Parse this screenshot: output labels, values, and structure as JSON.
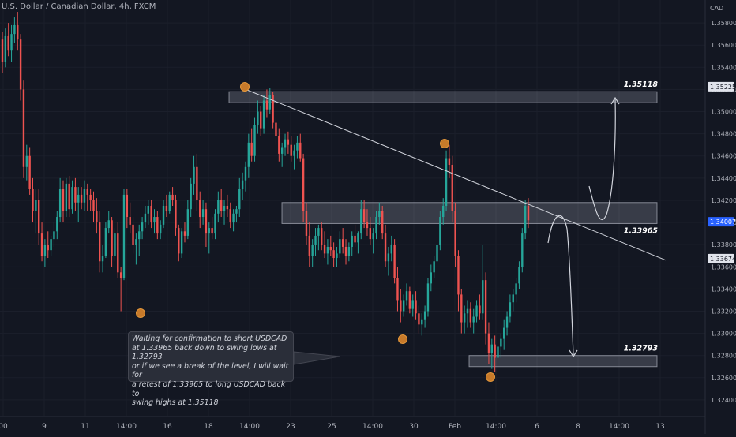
{
  "header": {
    "title": "U.S. Dollar / Canadian Dollar, 4h, FXCM"
  },
  "note": {
    "lines": [
      "Waiting for confirmation to short USDCAD",
      "at 1.33965 back down to swing lows at 1.32793",
      "or if we see a break of the level, I will wait for",
      "a retest of 1.33965 to long USDCAD back to",
      "swing highs at 1.35118"
    ]
  },
  "chart_data": {
    "type": "candlestick",
    "symbol": "USDCAD",
    "timeframe": "4h",
    "y_axis": {
      "unit_label": "CAD",
      "ticks": [
        "1.35800",
        "1.35600",
        "1.35400",
        "1.35200",
        "1.35000",
        "1.34800",
        "1.34600",
        "1.34400",
        "1.34200",
        "1.34000",
        "1.33800",
        "1.33600",
        "1.33400",
        "1.33200",
        "1.33000",
        "1.32800",
        "1.32600",
        "1.32400"
      ],
      "ylim": [
        1.3225,
        1.3595
      ],
      "badges": [
        {
          "value": "1.35225",
          "style": "light"
        },
        {
          "value": "1.34007",
          "style": "current"
        },
        {
          "value": "1.33674",
          "style": "light"
        }
      ]
    },
    "x_axis": {
      "ticks": [
        "00",
        "9",
        "11",
        "14:00",
        "16",
        "18",
        "14:00",
        "23",
        "25",
        "14:00",
        "30",
        "Feb",
        "14:00",
        "6",
        "8",
        "14:00",
        "13"
      ]
    },
    "levels": [
      {
        "label": "1.35118",
        "value": 1.35118,
        "zone": [
          1.3508,
          1.3518
        ]
      },
      {
        "label": "1.33965",
        "value": 1.33965,
        "zone": [
          1.3399,
          1.3418
        ]
      },
      {
        "label": "1.32793",
        "value": 1.32793,
        "zone": [
          1.327,
          1.328
        ]
      }
    ],
    "trendline": {
      "from": 1.3521,
      "to": 1.3366
    },
    "candles": [
      [
        1.3565,
        1.3572,
        1.3535,
        1.3545
      ],
      [
        1.3545,
        1.3575,
        1.354,
        1.3568
      ],
      [
        1.3568,
        1.358,
        1.355,
        1.3555
      ],
      [
        1.3555,
        1.3578,
        1.3545,
        1.357
      ],
      [
        1.357,
        1.3585,
        1.3562,
        1.3578
      ],
      [
        1.3578,
        1.359,
        1.3555,
        1.3565
      ],
      [
        1.3565,
        1.357,
        1.351,
        1.352
      ],
      [
        1.352,
        1.3528,
        1.344,
        1.345
      ],
      [
        1.345,
        1.347,
        1.3438,
        1.346
      ],
      [
        1.346,
        1.3468,
        1.3425,
        1.343
      ],
      [
        1.343,
        1.344,
        1.34,
        1.341
      ],
      [
        1.341,
        1.343,
        1.339,
        1.342
      ],
      [
        1.342,
        1.343,
        1.338,
        1.339
      ],
      [
        1.339,
        1.34,
        1.3365,
        1.337
      ],
      [
        1.337,
        1.3385,
        1.336,
        1.338
      ],
      [
        1.338,
        1.3392,
        1.3368,
        1.3375
      ],
      [
        1.3375,
        1.3388,
        1.337,
        1.3385
      ],
      [
        1.3385,
        1.34,
        1.3378,
        1.3392
      ],
      [
        1.3392,
        1.341,
        1.3385,
        1.3405
      ],
      [
        1.3405,
        1.344,
        1.34,
        1.343
      ],
      [
        1.343,
        1.3438,
        1.34,
        1.341
      ],
      [
        1.341,
        1.344,
        1.3405,
        1.3435
      ],
      [
        1.3435,
        1.3442,
        1.3405,
        1.3412
      ],
      [
        1.3412,
        1.3438,
        1.3408,
        1.3432
      ],
      [
        1.3432,
        1.344,
        1.341,
        1.3418
      ],
      [
        1.3418,
        1.3432,
        1.34,
        1.3425
      ],
      [
        1.3425,
        1.3432,
        1.3412,
        1.3418
      ],
      [
        1.3418,
        1.3438,
        1.341,
        1.343
      ],
      [
        1.343,
        1.3435,
        1.341,
        1.3425
      ],
      [
        1.3425,
        1.343,
        1.341,
        1.342
      ],
      [
        1.342,
        1.3428,
        1.34,
        1.341
      ],
      [
        1.341,
        1.3422,
        1.339,
        1.34
      ],
      [
        1.34,
        1.341,
        1.3355,
        1.3365
      ],
      [
        1.3365,
        1.338,
        1.3355,
        1.337
      ],
      [
        1.337,
        1.34,
        1.3368,
        1.3395
      ],
      [
        1.3395,
        1.341,
        1.339,
        1.3402
      ],
      [
        1.3402,
        1.3405,
        1.336,
        1.337
      ],
      [
        1.337,
        1.3395,
        1.3365,
        1.339
      ],
      [
        1.339,
        1.34,
        1.335,
        1.3355
      ],
      [
        1.3355,
        1.336,
        1.332,
        1.335
      ],
      [
        1.335,
        1.343,
        1.3348,
        1.3425
      ],
      [
        1.3425,
        1.343,
        1.3395,
        1.3405
      ],
      [
        1.3405,
        1.3418,
        1.339,
        1.3398
      ],
      [
        1.3398,
        1.3405,
        1.3372,
        1.338
      ],
      [
        1.338,
        1.339,
        1.3362,
        1.3385
      ],
      [
        1.3385,
        1.3398,
        1.337,
        1.3392
      ],
      [
        1.3392,
        1.3405,
        1.3385,
        1.34
      ],
      [
        1.34,
        1.3415,
        1.3395,
        1.3408
      ],
      [
        1.3408,
        1.342,
        1.3398,
        1.3415
      ],
      [
        1.3415,
        1.342,
        1.3395,
        1.34
      ],
      [
        1.34,
        1.3412,
        1.339,
        1.3405
      ],
      [
        1.3405,
        1.341,
        1.3385,
        1.339
      ],
      [
        1.339,
        1.3402,
        1.3385,
        1.3398
      ],
      [
        1.3398,
        1.342,
        1.3395,
        1.3415
      ],
      [
        1.3415,
        1.3425,
        1.3405,
        1.341
      ],
      [
        1.341,
        1.3428,
        1.3408,
        1.3425
      ],
      [
        1.3425,
        1.3432,
        1.3415,
        1.342
      ],
      [
        1.342,
        1.3425,
        1.3388,
        1.3395
      ],
      [
        1.3395,
        1.3398,
        1.3365,
        1.3372
      ],
      [
        1.3372,
        1.3395,
        1.3368,
        1.3392
      ],
      [
        1.3392,
        1.34,
        1.3382,
        1.3388
      ],
      [
        1.3388,
        1.342,
        1.3385,
        1.3412
      ],
      [
        1.3412,
        1.344,
        1.3405,
        1.3435
      ],
      [
        1.3435,
        1.346,
        1.3425,
        1.345
      ],
      [
        1.345,
        1.3462,
        1.341,
        1.342
      ],
      [
        1.342,
        1.3428,
        1.3395,
        1.3405
      ],
      [
        1.3405,
        1.342,
        1.3398,
        1.3412
      ],
      [
        1.3412,
        1.3418,
        1.3378,
        1.339
      ],
      [
        1.339,
        1.34,
        1.3372,
        1.3395
      ],
      [
        1.3395,
        1.3405,
        1.3385,
        1.339
      ],
      [
        1.339,
        1.3412,
        1.3385,
        1.3408
      ],
      [
        1.3408,
        1.3428,
        1.34,
        1.342
      ],
      [
        1.342,
        1.343,
        1.3405,
        1.341
      ],
      [
        1.341,
        1.342,
        1.3398,
        1.3415
      ],
      [
        1.3415,
        1.3425,
        1.3405,
        1.3412
      ],
      [
        1.3412,
        1.3418,
        1.3395,
        1.34
      ],
      [
        1.34,
        1.3412,
        1.3392,
        1.3408
      ],
      [
        1.3408,
        1.3415,
        1.34,
        1.3412
      ],
      [
        1.3412,
        1.344,
        1.3405,
        1.343
      ],
      [
        1.343,
        1.3445,
        1.342,
        1.3438
      ],
      [
        1.3438,
        1.3455,
        1.3428,
        1.345
      ],
      [
        1.345,
        1.348,
        1.344,
        1.3472
      ],
      [
        1.3472,
        1.3485,
        1.3455,
        1.346
      ],
      [
        1.346,
        1.3495,
        1.3455,
        1.3488
      ],
      [
        1.3488,
        1.351,
        1.348,
        1.35
      ],
      [
        1.35,
        1.3505,
        1.3478,
        1.3485
      ],
      [
        1.3485,
        1.3515,
        1.348,
        1.351
      ],
      [
        1.351,
        1.352,
        1.3495,
        1.3502
      ],
      [
        1.3502,
        1.3521,
        1.3498,
        1.3515
      ],
      [
        1.3515,
        1.3518,
        1.3485,
        1.349
      ],
      [
        1.349,
        1.3495,
        1.347,
        1.3478
      ],
      [
        1.3478,
        1.3485,
        1.3455,
        1.3462
      ],
      [
        1.3462,
        1.3472,
        1.345,
        1.3468
      ],
      [
        1.3468,
        1.348,
        1.346,
        1.3475
      ],
      [
        1.3475,
        1.3482,
        1.3462,
        1.347
      ],
      [
        1.347,
        1.3478,
        1.3455,
        1.346
      ],
      [
        1.346,
        1.347,
        1.3448,
        1.3465
      ],
      [
        1.3465,
        1.3478,
        1.3458,
        1.3472
      ],
      [
        1.3472,
        1.348,
        1.3455,
        1.3458
      ],
      [
        1.3458,
        1.3462,
        1.34,
        1.341
      ],
      [
        1.341,
        1.3418,
        1.338,
        1.3388
      ],
      [
        1.3388,
        1.34,
        1.336,
        1.337
      ],
      [
        1.337,
        1.3385,
        1.336,
        1.338
      ],
      [
        1.338,
        1.3395,
        1.337,
        1.3388
      ],
      [
        1.3388,
        1.3398,
        1.3375,
        1.3395
      ],
      [
        1.3395,
        1.34,
        1.3375,
        1.338
      ],
      [
        1.338,
        1.3392,
        1.3368,
        1.3372
      ],
      [
        1.3372,
        1.3385,
        1.3362,
        1.3378
      ],
      [
        1.3378,
        1.3388,
        1.337,
        1.3375
      ],
      [
        1.3375,
        1.3382,
        1.336,
        1.3368
      ],
      [
        1.3368,
        1.3378,
        1.336,
        1.3372
      ],
      [
        1.3372,
        1.3392,
        1.3368,
        1.3385
      ],
      [
        1.3385,
        1.3395,
        1.3372,
        1.3378
      ],
      [
        1.3378,
        1.3385,
        1.3362,
        1.337
      ],
      [
        1.337,
        1.3382,
        1.3365,
        1.3378
      ],
      [
        1.3378,
        1.3392,
        1.337,
        1.3388
      ],
      [
        1.3388,
        1.3398,
        1.3378,
        1.3382
      ],
      [
        1.3382,
        1.3392,
        1.3372,
        1.339
      ],
      [
        1.339,
        1.342,
        1.3385,
        1.3412
      ],
      [
        1.3412,
        1.342,
        1.3395,
        1.34
      ],
      [
        1.34,
        1.3412,
        1.3388,
        1.3395
      ],
      [
        1.3395,
        1.3405,
        1.338,
        1.3385
      ],
      [
        1.3385,
        1.3395,
        1.3372,
        1.339
      ],
      [
        1.339,
        1.341,
        1.3385,
        1.3405
      ],
      [
        1.3405,
        1.3418,
        1.3398,
        1.341
      ],
      [
        1.341,
        1.3415,
        1.3385,
        1.339
      ],
      [
        1.339,
        1.3398,
        1.336,
        1.3365
      ],
      [
        1.3365,
        1.3378,
        1.3352,
        1.3372
      ],
      [
        1.3372,
        1.3388,
        1.3365,
        1.338
      ],
      [
        1.338,
        1.3385,
        1.3345,
        1.335
      ],
      [
        1.335,
        1.336,
        1.332,
        1.333
      ],
      [
        1.333,
        1.334,
        1.331,
        1.332
      ],
      [
        1.332,
        1.3335,
        1.3315,
        1.333
      ],
      [
        1.333,
        1.3345,
        1.3325,
        1.3338
      ],
      [
        1.3338,
        1.3342,
        1.3318,
        1.3322
      ],
      [
        1.3322,
        1.3335,
        1.3315,
        1.333
      ],
      [
        1.333,
        1.3338,
        1.3312,
        1.3318
      ],
      [
        1.3318,
        1.3325,
        1.33,
        1.3308
      ],
      [
        1.3308,
        1.3318,
        1.3298,
        1.3312
      ],
      [
        1.3312,
        1.3325,
        1.3305,
        1.332
      ],
      [
        1.332,
        1.335,
        1.3315,
        1.3345
      ],
      [
        1.3345,
        1.3362,
        1.3338,
        1.3355
      ],
      [
        1.3355,
        1.337,
        1.335,
        1.3365
      ],
      [
        1.3365,
        1.3385,
        1.336,
        1.338
      ],
      [
        1.338,
        1.341,
        1.3375,
        1.3405
      ],
      [
        1.3405,
        1.3422,
        1.3398,
        1.3415
      ],
      [
        1.3415,
        1.3465,
        1.341,
        1.3458
      ],
      [
        1.3458,
        1.347,
        1.344,
        1.3452
      ],
      [
        1.3452,
        1.346,
        1.34,
        1.341
      ],
      [
        1.341,
        1.3418,
        1.336,
        1.337
      ],
      [
        1.337,
        1.3375,
        1.332,
        1.3335
      ],
      [
        1.3335,
        1.334,
        1.33,
        1.331
      ],
      [
        1.331,
        1.3325,
        1.33,
        1.3318
      ],
      [
        1.3318,
        1.333,
        1.3305,
        1.3322
      ],
      [
        1.3322,
        1.3328,
        1.3305,
        1.331
      ],
      [
        1.331,
        1.3322,
        1.33,
        1.3315
      ],
      [
        1.3315,
        1.333,
        1.331,
        1.3325
      ],
      [
        1.3325,
        1.3335,
        1.3312,
        1.3318
      ],
      [
        1.3318,
        1.338,
        1.3312,
        1.3348
      ],
      [
        1.3348,
        1.3355,
        1.329,
        1.33
      ],
      [
        1.33,
        1.331,
        1.3272,
        1.3282
      ],
      [
        1.3282,
        1.3295,
        1.3268,
        1.329
      ],
      [
        1.329,
        1.3298,
        1.3265,
        1.3278
      ],
      [
        1.3278,
        1.3292,
        1.3272,
        1.3288
      ],
      [
        1.3288,
        1.33,
        1.3278,
        1.3295
      ],
      [
        1.3295,
        1.3312,
        1.3285,
        1.3305
      ],
      [
        1.3305,
        1.332,
        1.3298,
        1.3315
      ],
      [
        1.3315,
        1.3335,
        1.331,
        1.3328
      ],
      [
        1.3328,
        1.334,
        1.332,
        1.3335
      ],
      [
        1.3335,
        1.335,
        1.3328,
        1.3345
      ],
      [
        1.3345,
        1.3365,
        1.334,
        1.336
      ],
      [
        1.336,
        1.3395,
        1.3355,
        1.339
      ],
      [
        1.339,
        1.342,
        1.3385,
        1.3415
      ],
      [
        1.3415,
        1.3422,
        1.3395,
        1.3402
      ]
    ]
  }
}
